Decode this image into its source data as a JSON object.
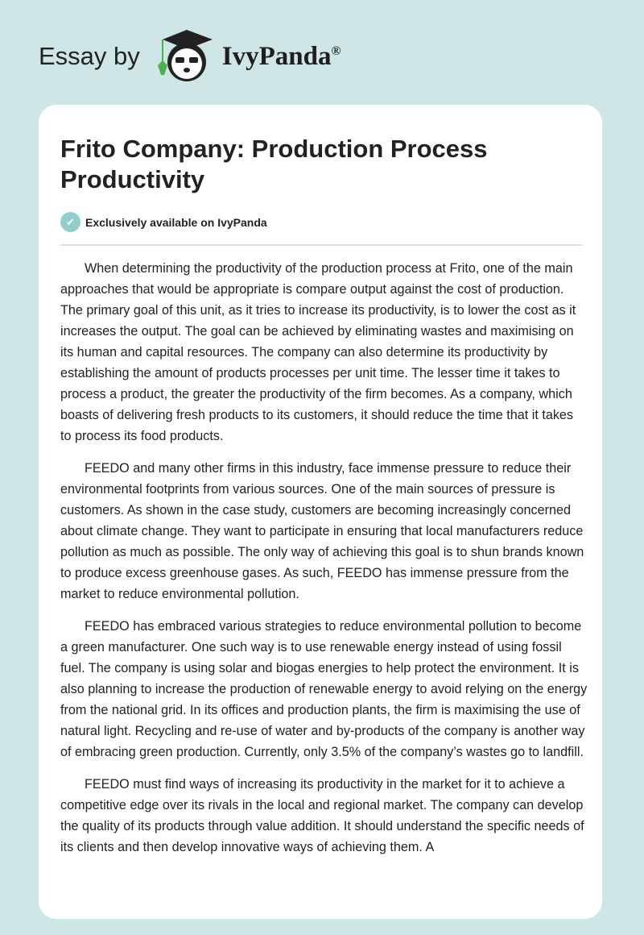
{
  "header": {
    "essay_by": "Essay by",
    "brand": "IvyPanda",
    "registered": "®",
    "logo_icon": "panda-graduation-cap-logo"
  },
  "article": {
    "title": "Frito Company: Production Process Productivity",
    "badge": "Exclusively available on IvyPanda",
    "paragraphs": [
      "When determining the productivity of the production process at Frito, one of the main approaches that would be appropriate is compare output against the cost of production. The primary goal of this unit, as it tries to increase its productivity, is to lower the cost as it increases the output. The goal can be achieved by eliminating wastes and maximising on its human and capital resources. The company can also determine its productivity by establishing the amount of products processes per unit time. The lesser time it takes to process a product, the greater the productivity of the firm becomes. As a company, which boasts of delivering fresh products to its customers, it should reduce the time that it takes to process its food products.",
      "FEEDO and many other firms in this industry, face immense pressure to reduce their environmental footprints from various sources. One of the main sources of pressure is customers. As shown in the case study, customers are becoming increasingly concerned about climate change. They want to participate in ensuring that local manufacturers reduce pollution as much as possible. The only way of achieving this goal is to shun brands known to produce excess greenhouse gases. As such, FEEDO has immense pressure from the market to reduce environmental pollution.",
      "FEEDO has embraced various strategies to reduce environmental pollution to become a green manufacturer. One such way is to use renewable energy instead of using fossil fuel. The company is using solar and biogas energies to help protect the environment. It is also planning to increase the production of renewable energy to avoid relying on the energy from the national grid. In its offices and production plants, the firm is maximising the use of natural light. Recycling and re-use of water and by-products of the company is another way of embracing green production. Currently, only 3.5% of the company’s wastes go to landfill.",
      "FEEDO must find ways of increasing its productivity in the market for it to achieve a competitive edge over its rivals in the local and regional market. The company can develop the quality of its products through value addition. It should understand the specific needs of its clients and then develop innovative ways of achieving them. A"
    ]
  }
}
